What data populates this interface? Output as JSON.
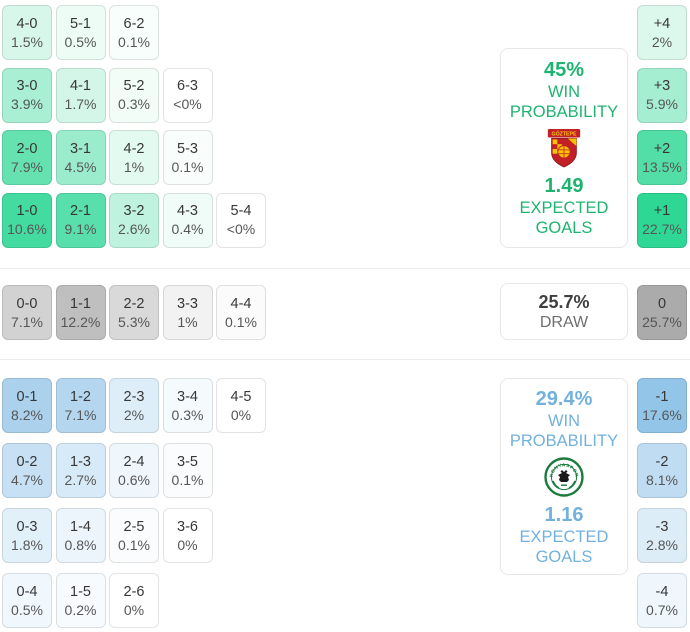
{
  "accent_colors": {
    "home_text_green": "#1eb470",
    "away_text_blue": "#72b1dc",
    "draw_text_gray": "#3f3f3f",
    "home_cell_strong": "#2fd795",
    "away_cell_strong": "#93c5e8",
    "draw_cell_strong": "#ababab"
  },
  "chart_data": {
    "type": "heatmap",
    "title": "Correct score probability matrix with win/draw probabilities and expected goals",
    "sections": {
      "home_win": {
        "rows": [
          [
            {
              "label": "4-0",
              "pct": "1.5%",
              "bg": "#d7f7ea"
            },
            {
              "label": "5-1",
              "pct": "0.5%",
              "bg": "#edfcf5"
            },
            {
              "label": "6-2",
              "pct": "0.1%",
              "bg": "#f8fefb"
            }
          ],
          [
            {
              "label": "3-0",
              "pct": "3.9%",
              "bg": "#a8efd3"
            },
            {
              "label": "4-1",
              "pct": "1.7%",
              "bg": "#d3f6e8"
            },
            {
              "label": "5-2",
              "pct": "0.3%",
              "bg": "#f2fdf8"
            },
            {
              "label": "6-3",
              "pct": "<0%",
              "bg": "#ffffff"
            }
          ],
          [
            {
              "label": "2-0",
              "pct": "7.9%",
              "bg": "#66e2b1"
            },
            {
              "label": "3-1",
              "pct": "4.5%",
              "bg": "#9beccd"
            },
            {
              "label": "4-2",
              "pct": "1%",
              "bg": "#e2faf0"
            },
            {
              "label": "5-3",
              "pct": "0.1%",
              "bg": "#f9fefc"
            }
          ],
          [
            {
              "label": "1-0",
              "pct": "10.6%",
              "bg": "#44dba1"
            },
            {
              "label": "2-1",
              "pct": "9.1%",
              "bg": "#58dfab"
            },
            {
              "label": "3-2",
              "pct": "2.6%",
              "bg": "#bff3df"
            },
            {
              "label": "4-3",
              "pct": "0.4%",
              "bg": "#f0fcf7"
            },
            {
              "label": "5-4",
              "pct": "<0%",
              "bg": "#ffffff"
            }
          ]
        ],
        "goal_diff": [
          {
            "label": "+4",
            "pct": "2%",
            "bg": "#dcf8ec"
          },
          {
            "label": "+3",
            "pct": "5.9%",
            "bg": "#a5eed1"
          },
          {
            "label": "+2",
            "pct": "13.5%",
            "bg": "#53dea7"
          },
          {
            "label": "+1",
            "pct": "22.7%",
            "bg": "#2fd795"
          }
        ]
      },
      "draw": {
        "rows": [
          [
            {
              "label": "0-0",
              "pct": "7.1%",
              "bg": "#d2d2d2"
            },
            {
              "label": "1-1",
              "pct": "12.2%",
              "bg": "#bfbfbf"
            },
            {
              "label": "2-2",
              "pct": "5.3%",
              "bg": "#d9d9d9"
            },
            {
              "label": "3-3",
              "pct": "1%",
              "bg": "#f2f2f2"
            },
            {
              "label": "4-4",
              "pct": "0.1%",
              "bg": "#fbfbfb"
            }
          ]
        ],
        "goal_diff": [
          {
            "label": "0",
            "pct": "25.7%",
            "bg": "#ababab"
          }
        ]
      },
      "away_win": {
        "rows": [
          [
            {
              "label": "0-1",
              "pct": "8.2%",
              "bg": "#abd1ed"
            },
            {
              "label": "1-2",
              "pct": "7.1%",
              "bg": "#b5d6ef"
            },
            {
              "label": "2-3",
              "pct": "2%",
              "bg": "#ddeef8"
            },
            {
              "label": "3-4",
              "pct": "0.3%",
              "bg": "#f5fafd"
            },
            {
              "label": "4-5",
              "pct": "0%",
              "bg": "#ffffff"
            }
          ],
          [
            {
              "label": "0-2",
              "pct": "4.7%",
              "bg": "#c7e0f3"
            },
            {
              "label": "1-3",
              "pct": "2.7%",
              "bg": "#d7eaf7"
            },
            {
              "label": "2-4",
              "pct": "0.6%",
              "bg": "#eff6fc"
            },
            {
              "label": "3-5",
              "pct": "0.1%",
              "bg": "#fafcfe"
            }
          ],
          [
            {
              "label": "0-3",
              "pct": "1.8%",
              "bg": "#e2f0fa"
            },
            {
              "label": "1-4",
              "pct": "0.8%",
              "bg": "#ecf5fb"
            },
            {
              "label": "2-5",
              "pct": "0.1%",
              "bg": "#fafcfe"
            },
            {
              "label": "3-6",
              "pct": "0%",
              "bg": "#ffffff"
            }
          ],
          [
            {
              "label": "0-4",
              "pct": "0.5%",
              "bg": "#f1f8fd"
            },
            {
              "label": "1-5",
              "pct": "0.2%",
              "bg": "#f8fbfe"
            },
            {
              "label": "2-6",
              "pct": "0%",
              "bg": "#ffffff"
            }
          ]
        ],
        "goal_diff": [
          {
            "label": "-1",
            "pct": "17.6%",
            "bg": "#93c5e8"
          },
          {
            "label": "-2",
            "pct": "8.1%",
            "bg": "#c0dcf2"
          },
          {
            "label": "-3",
            "pct": "2.8%",
            "bg": "#ddedf8"
          },
          {
            "label": "-4",
            "pct": "0.7%",
            "bg": "#eff7fc"
          }
        ]
      }
    },
    "summary": {
      "home": {
        "win_pct": "45%",
        "win_label_line1": "WIN",
        "win_label_line2": "PROBABILITY",
        "xg": "1.49",
        "xg_label_line1": "EXPECTED",
        "xg_label_line2": "GOALS",
        "team_logo": "goztepe-crest"
      },
      "draw": {
        "pct": "25.7%",
        "label": "DRAW"
      },
      "away": {
        "win_pct": "29.4%",
        "win_label_line1": "WIN",
        "win_label_line2": "PROBABILITY",
        "xg": "1.16",
        "xg_label_line1": "EXPECTED",
        "xg_label_line2": "GOALS",
        "team_logo": "konyaspor-crest"
      }
    }
  }
}
